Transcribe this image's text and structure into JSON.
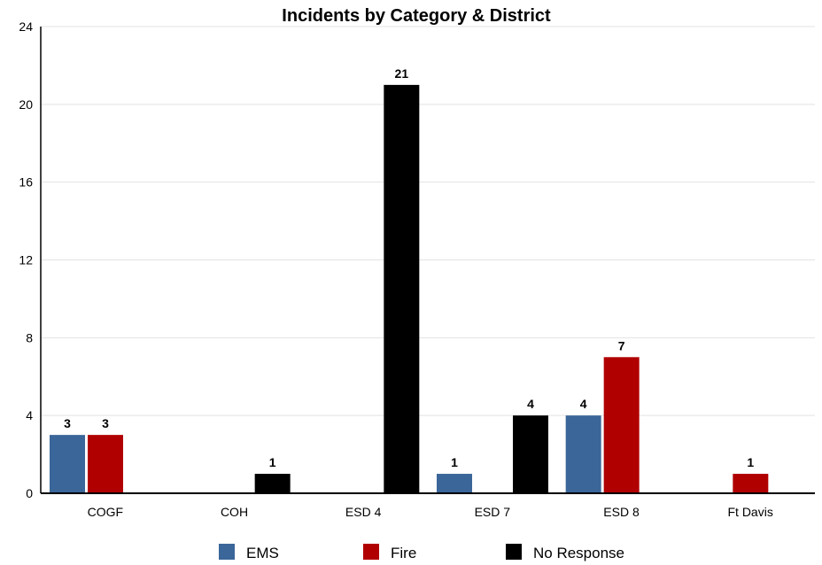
{
  "chart_data": {
    "type": "bar",
    "title": "Incidents by Category & District",
    "xlabel": "",
    "ylabel": "",
    "categories": [
      "COGF",
      "COH",
      "ESD 4",
      "ESD 7",
      "ESD 8",
      "Ft Davis"
    ],
    "series": [
      {
        "name": "EMS",
        "color": "#3b6699",
        "values": [
          3,
          0,
          0,
          1,
          4,
          0
        ]
      },
      {
        "name": "Fire",
        "color": "#b00000",
        "values": [
          3,
          0,
          0,
          0,
          7,
          1
        ]
      },
      {
        "name": "No Response",
        "color": "#000000",
        "values": [
          0,
          1,
          21,
          4,
          0,
          0
        ]
      }
    ],
    "ylim": [
      0,
      24
    ],
    "yticks": [
      0,
      4,
      8,
      12,
      16,
      20,
      24
    ],
    "grid": true,
    "legend_position": "bottom",
    "data_labels": true
  }
}
